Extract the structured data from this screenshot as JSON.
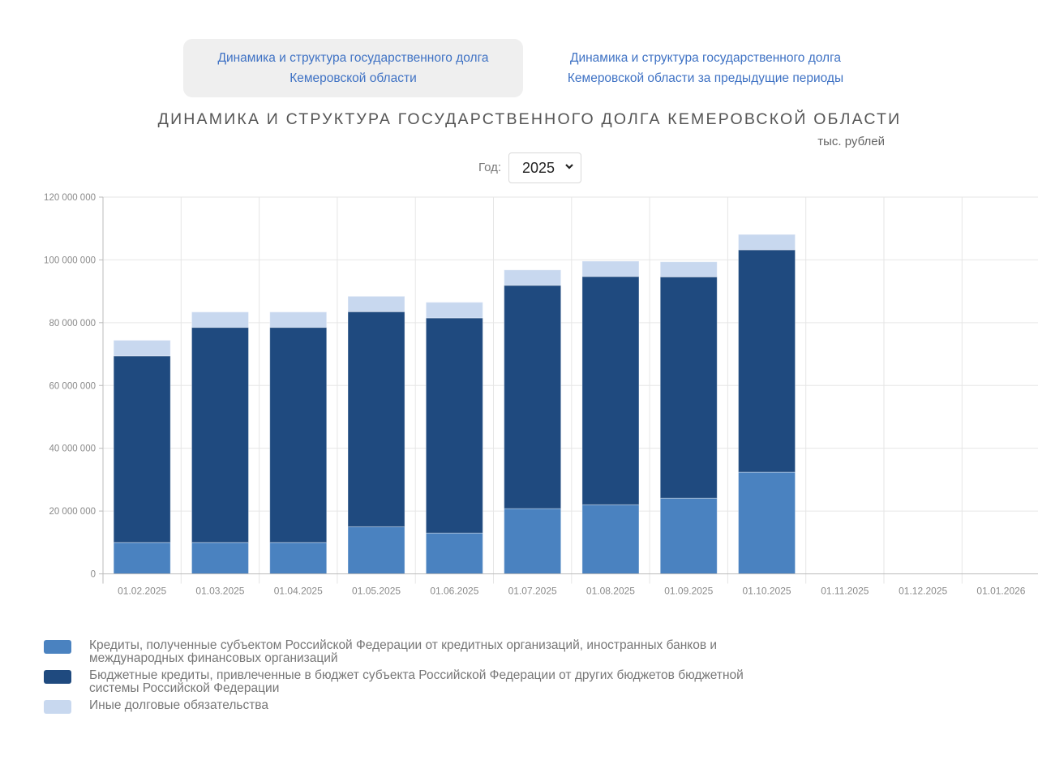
{
  "tabs": [
    {
      "label_line1": "Динамика и структура государственного долга",
      "label_line2": "Кемеровской области",
      "active": true
    },
    {
      "label_line1": "Динамика и структура государственного долга",
      "label_line2": "Кемеровской области за предыдущие периоды",
      "active": false
    }
  ],
  "units": "тыс. рублей",
  "year_filter": {
    "label": "Год:",
    "selected": "2025",
    "icon": "chevron-down-icon"
  },
  "colors": {
    "series1": "#4a82c0",
    "series2": "#1f4a7f",
    "series3": "#c8d8ef",
    "active_tab_bg": "#efefef",
    "link": "#3f72c4"
  },
  "chart_data": {
    "type": "bar",
    "stacked": true,
    "title": "ДИНАМИКА И СТРУКТУРА ГОСУДАРСТВЕННОГО ДОЛГА КЕМЕРОВСКОЙ ОБЛАСТИ",
    "ylabel": "тыс. рублей",
    "xlabel": "",
    "ylim": [
      0,
      120000000
    ],
    "yticks": [
      0,
      20000000,
      40000000,
      60000000,
      80000000,
      100000000,
      120000000
    ],
    "ytick_labels": [
      "0",
      "20 000 000",
      "40 000 000",
      "60 000 000",
      "80 000 000",
      "100 000 000",
      "120 000 000"
    ],
    "grid": true,
    "legend_position": "bottom-left",
    "categories": [
      "01.02.2025",
      "01.03.2025",
      "01.04.2025",
      "01.05.2025",
      "01.06.2025",
      "01.07.2025",
      "01.08.2025",
      "01.09.2025",
      "01.10.2025",
      "01.11.2025",
      "01.12.2025",
      "01.01.2026"
    ],
    "series": [
      {
        "name": "Кредиты, полученные субъектом Российской Федерации от кредитных организаций, иностранных банков и международных финансовых организаций",
        "legend_line1": "Кредиты, полученные субъектом Российской Федерации от кредитных организаций, иностранных банков и",
        "legend_line2": "международных финансовых организаций",
        "color": "#4a82c0",
        "values": [
          10000000,
          10000000,
          10000000,
          15000000,
          13000000,
          20800000,
          22000000,
          24100000,
          32400000,
          null,
          null,
          null
        ]
      },
      {
        "name": "Бюджетные кредиты, привлеченные в бюджет субъекта Российской Федерации от других бюджетов бюджетной системы Российской Федерации",
        "legend_line1": "Бюджетные кредиты, привлеченные в бюджет субъекта Российской Федерации от других бюджетов бюджетной",
        "legend_line2": "системы Российской Федерации",
        "color": "#1f4a7f",
        "values": [
          59400000,
          68500000,
          68500000,
          68500000,
          68500000,
          71100000,
          72700000,
          70500000,
          70800000,
          null,
          null,
          null
        ]
      },
      {
        "name": "Иные долговые обязательства",
        "legend_line1": "Иные долговые обязательства",
        "legend_line2": "",
        "color": "#c8d8ef",
        "values": [
          5000000,
          4900000,
          4900000,
          4900000,
          5000000,
          4900000,
          4900000,
          4800000,
          4900000,
          null,
          null,
          null
        ]
      }
    ]
  }
}
